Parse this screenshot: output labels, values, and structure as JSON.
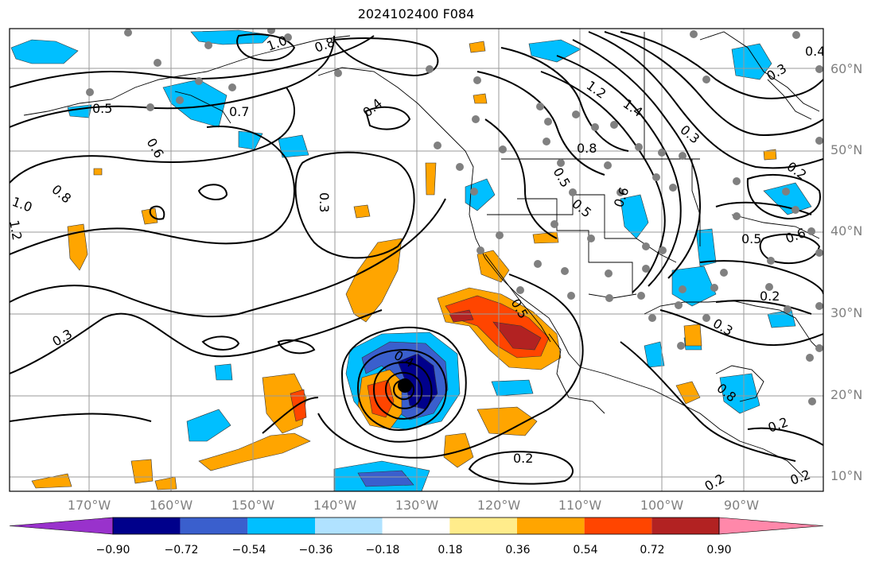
{
  "title": "2024102400 F084",
  "map": {
    "lat_labels": [
      "60°N",
      "50°N",
      "40°N",
      "30°N",
      "20°N",
      "10°N"
    ],
    "lon_labels": [
      "170°W",
      "160°W",
      "150°W",
      "140°W",
      "130°W",
      "120°W",
      "110°W",
      "100°W",
      "90°W"
    ],
    "contour_labels": [
      "1.0",
      "0.8",
      "0.5",
      "0.6",
      "0.7",
      "0.4",
      "1.2",
      "1.4",
      "0.3",
      "0.8",
      "0.5",
      "0.5",
      "1.0",
      "0.8",
      "1.2",
      "0.6",
      "0.3",
      "0.2",
      "0.3",
      "0.4",
      "0.5",
      "0.2",
      "0.3",
      "0.5",
      "0.6",
      "0.2",
      "0.2",
      "0.4",
      "0.3",
      "0.2",
      "0.2",
      "0.8"
    ]
  },
  "colorbar": {
    "ticks": [
      "−0.90",
      "−0.72",
      "−0.54",
      "−0.36",
      "−0.18",
      "0.18",
      "0.36",
      "0.54",
      "0.72",
      "0.90"
    ],
    "colors": [
      "#9932cc",
      "#00008b",
      "#3a5fcd",
      "#00bfff",
      "#b0e2ff",
      "#ffffff",
      "#ffec8b",
      "#ffa500",
      "#ff4500",
      "#b22222",
      "#ff88aa"
    ]
  }
}
